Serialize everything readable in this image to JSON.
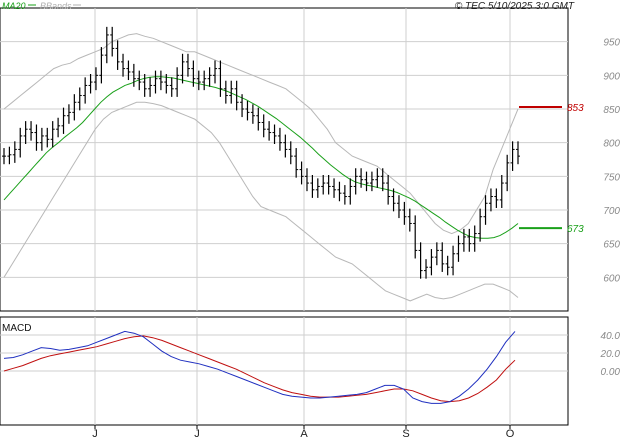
{
  "header": {
    "legend_ma": "MA20",
    "legend_bb": "BBands",
    "copyright": "© TEC 5/10/2025 3:0 GMT"
  },
  "colors": {
    "price": "#000000",
    "ma": "#1aa01a",
    "bbands": "#b8b8b8",
    "resistance": "#c00000",
    "support": "#1aa01a",
    "macd": "#2030c0",
    "signal": "#c01010",
    "grid": "#cfcfcf"
  },
  "chart_data": [
    {
      "type": "line",
      "title": "",
      "series_names": [
        "price",
        "MA20",
        "BBands"
      ],
      "ylim": [
        550,
        1000
      ],
      "yticks": [
        600,
        650,
        700,
        750,
        800,
        850,
        900,
        950
      ],
      "xlabels": [
        "J",
        "J",
        "A",
        "S",
        "O"
      ],
      "levels": [
        {
          "name": "resistance",
          "value": 853,
          "label": "853"
        },
        {
          "name": "support",
          "value": 673,
          "label": "673"
        }
      ],
      "price_close": [
        780,
        782,
        790,
        810,
        820,
        815,
        800,
        810,
        805,
        820,
        825,
        840,
        845,
        860,
        870,
        885,
        890,
        900,
        930,
        960,
        940,
        920,
        910,
        905,
        895,
        890,
        880,
        885,
        895,
        890,
        885,
        880,
        900,
        920,
        910,
        895,
        890,
        895,
        900,
        910,
        880,
        870,
        880,
        860,
        850,
        845,
        840,
        830,
        820,
        815,
        810,
        800,
        790,
        780,
        760,
        750,
        740,
        730,
        735,
        740,
        735,
        730,
        725,
        720,
        735,
        750,
        745,
        740,
        745,
        750,
        740,
        720,
        710,
        700,
        690,
        680,
        640,
        610,
        615,
        630,
        640,
        620,
        615,
        635,
        650,
        660,
        650,
        665,
        690,
        710,
        720,
        715,
        740,
        770,
        790,
        780
      ],
      "ma20": [
        715,
        725,
        735,
        745,
        755,
        765,
        775,
        785,
        793,
        800,
        808,
        815,
        822,
        830,
        840,
        850,
        860,
        868,
        875,
        880,
        885,
        888,
        892,
        895,
        897,
        898,
        898,
        897,
        896,
        894,
        892,
        890,
        888,
        886,
        884,
        882,
        879,
        876,
        872,
        868,
        864,
        859,
        854,
        848,
        842,
        836,
        829,
        822,
        815,
        808,
        800,
        792,
        783,
        775,
        767,
        760,
        753,
        747,
        742,
        739,
        737,
        735,
        733,
        731,
        729,
        726,
        722,
        718,
        713,
        707,
        701,
        695,
        689,
        682,
        676,
        670,
        665,
        661,
        659,
        658,
        658,
        659,
        662,
        667,
        673,
        680
      ],
      "bb_upper": [
        850,
        860,
        870,
        880,
        890,
        900,
        910,
        915,
        918,
        925,
        930,
        935,
        940,
        950,
        955,
        960,
        962,
        958,
        955,
        950,
        945,
        940,
        935,
        935,
        930,
        925,
        920,
        915,
        910,
        905,
        900,
        895,
        890,
        885,
        880,
        870,
        860,
        850,
        835,
        820,
        800,
        790,
        780,
        775,
        770,
        765,
        755,
        745,
        735,
        725,
        710,
        695,
        680,
        670,
        665,
        670,
        680,
        700,
        720,
        760,
        790,
        820,
        850
      ],
      "bb_lower": [
        600,
        620,
        640,
        660,
        680,
        700,
        720,
        740,
        760,
        780,
        800,
        820,
        835,
        845,
        850,
        855,
        860,
        860,
        858,
        855,
        850,
        845,
        840,
        835,
        825,
        815,
        800,
        780,
        760,
        740,
        720,
        705,
        700,
        695,
        690,
        680,
        670,
        660,
        650,
        640,
        630,
        625,
        620,
        610,
        600,
        590,
        580,
        575,
        570,
        565,
        570,
        575,
        570,
        568,
        570,
        575,
        580,
        585,
        590,
        590,
        585,
        580,
        570
      ]
    },
    {
      "type": "line",
      "title": "MACD",
      "series_names": [
        "MACD",
        "signal"
      ],
      "ylim": [
        -60,
        60
      ],
      "yticks": [
        40,
        20,
        0
      ],
      "macd": [
        14,
        15,
        18,
        22,
        26,
        25,
        23,
        24,
        26,
        28,
        32,
        36,
        40,
        44,
        42,
        38,
        30,
        22,
        16,
        12,
        10,
        8,
        5,
        2,
        -2,
        -6,
        -10,
        -14,
        -18,
        -22,
        -26,
        -28,
        -29,
        -30,
        -30,
        -29,
        -28,
        -27,
        -26,
        -24,
        -20,
        -16,
        -16,
        -20,
        -30,
        -34,
        -36,
        -36,
        -34,
        -28,
        -20,
        -10,
        2,
        16,
        32,
        44
      ],
      "signal": [
        0,
        3,
        6,
        10,
        14,
        17,
        19,
        21,
        23,
        25,
        27,
        30,
        33,
        36,
        38,
        39,
        37,
        34,
        30,
        26,
        22,
        18,
        14,
        10,
        6,
        2,
        -3,
        -8,
        -13,
        -17,
        -21,
        -24,
        -26,
        -28,
        -29,
        -29,
        -29,
        -28,
        -27,
        -26,
        -24,
        -22,
        -20,
        -20,
        -22,
        -26,
        -30,
        -33,
        -34,
        -33,
        -30,
        -25,
        -18,
        -10,
        2,
        12
      ]
    }
  ]
}
